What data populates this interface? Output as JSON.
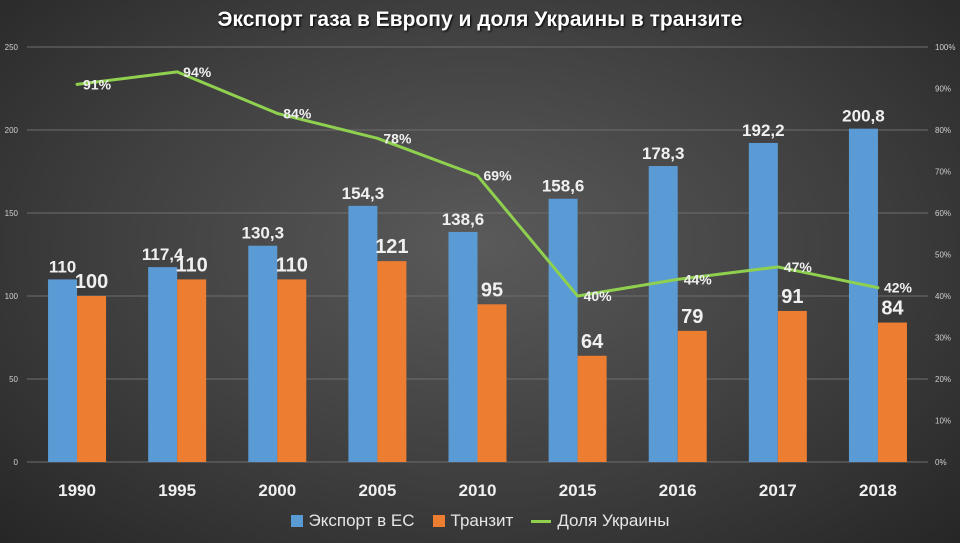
{
  "chart_data": {
    "type": "bar",
    "title": "Экспорт газа в Европу и доля Украины в транзите",
    "categories": [
      "1990",
      "1995",
      "2000",
      "2005",
      "2010",
      "2015",
      "2016",
      "2017",
      "2018"
    ],
    "series": [
      {
        "name": "Экспорт в ЕС",
        "type": "bar",
        "axis": "left",
        "values": [
          110,
          117.4,
          130.3,
          154.3,
          138.6,
          158.6,
          178.3,
          192.2,
          200.8
        ],
        "labels": [
          "110",
          "117,4",
          "130,3",
          "154,3",
          "138,6",
          "158,6",
          "178,3",
          "192,2",
          "200,8"
        ],
        "color": "#5b9bd5"
      },
      {
        "name": "Транзит",
        "type": "bar",
        "axis": "left",
        "values": [
          100,
          110,
          110,
          121,
          95,
          64,
          79,
          91,
          84
        ],
        "labels": [
          "100",
          "110",
          "110",
          "121",
          "95",
          "64",
          "79",
          "91",
          "84"
        ],
        "color": "#ed7d31"
      },
      {
        "name": "Доля Украины",
        "type": "line",
        "axis": "right",
        "values": [
          91,
          94,
          84,
          78,
          69,
          40,
          44,
          47,
          42
        ],
        "labels": [
          "91%",
          "94%",
          "84%",
          "78%",
          "69%",
          "40%",
          "44%",
          "47%",
          "42%"
        ],
        "color": "#8fd14f"
      }
    ],
    "y_left": {
      "min": 0,
      "max": 250,
      "ticks": [
        "0",
        "50",
        "100",
        "150",
        "200",
        "250"
      ]
    },
    "y_right": {
      "min": 0,
      "max": 100,
      "ticks": [
        "0%",
        "10%",
        "20%",
        "30%",
        "40%",
        "50%",
        "60%",
        "70%",
        "80%",
        "90%",
        "100%"
      ]
    },
    "grid": true,
    "legend_position": "bottom"
  }
}
